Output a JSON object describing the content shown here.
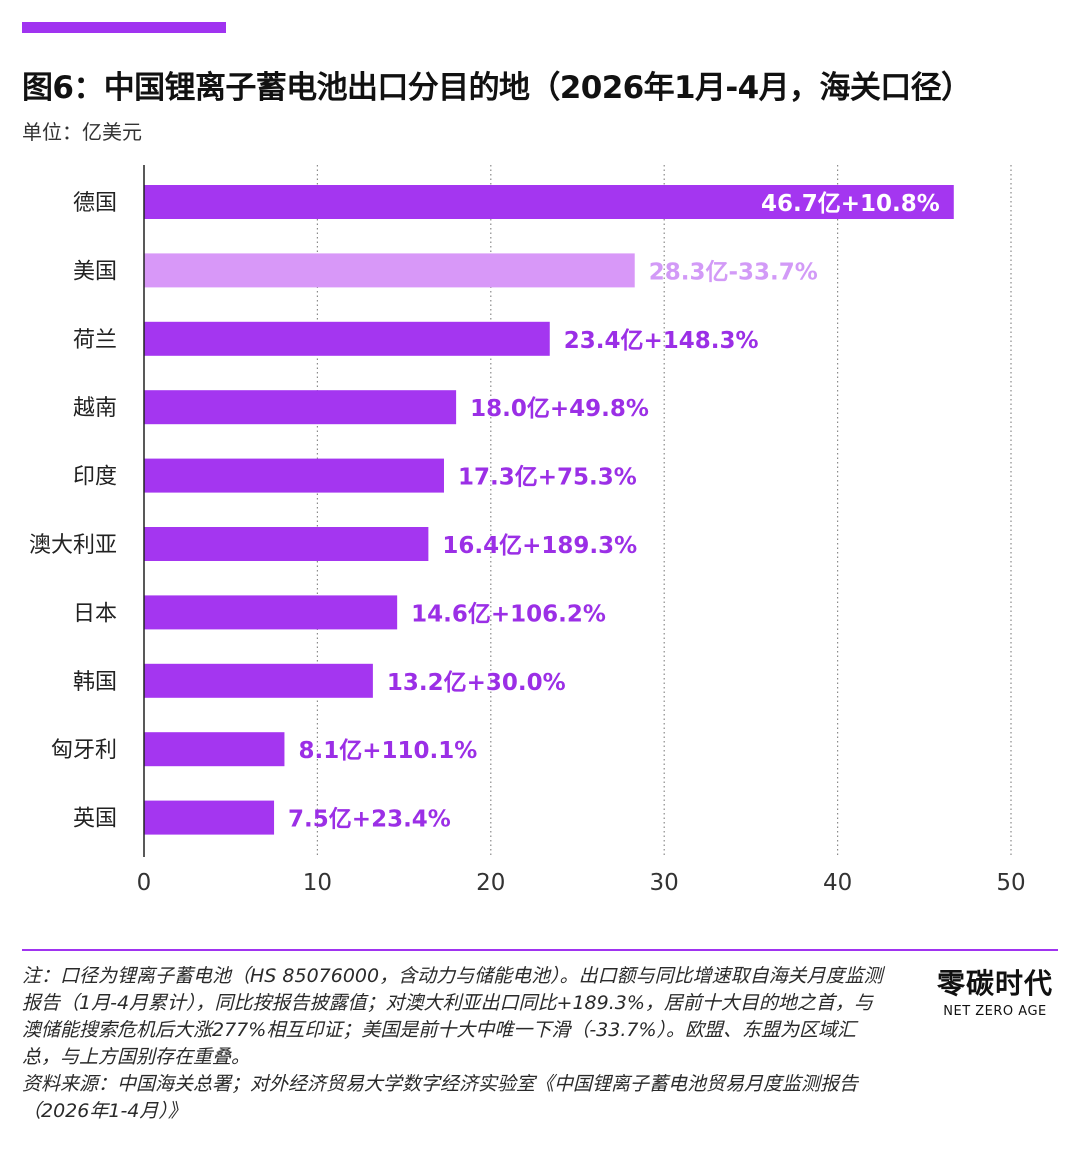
{
  "header": {
    "title": "图6：中国锂离子蓄电池出口分目的地（2026年1月-4月，海关口径）",
    "unit": "单位：亿美元"
  },
  "colors": {
    "accent": "#a033f0",
    "bar": "#a436f0",
    "bar_highlight": "#d898f8",
    "label_dark": "#9b2fe6",
    "label_light": "#d29af7",
    "label_inside": "#ffffff"
  },
  "chart_data": {
    "type": "bar",
    "orientation": "horizontal",
    "categories": [
      "德国",
      "美国",
      "荷兰",
      "越南",
      "印度",
      "澳大利亚",
      "日本",
      "韩国",
      "匈牙利",
      "英国"
    ],
    "values": [
      46.7,
      28.3,
      23.4,
      18.0,
      17.3,
      16.4,
      14.6,
      13.2,
      8.1,
      7.5
    ],
    "data_labels": [
      "46.7亿+10.8%",
      "28.3亿-33.7%",
      "23.4亿+148.3%",
      "18.0亿+49.8%",
      "17.3亿+75.3%",
      "16.4亿+189.3%",
      "14.6亿+106.2%",
      "13.2亿+30.0%",
      "8.1亿+110.1%",
      "7.5亿+23.4%"
    ],
    "highlight_categories": [
      "美国"
    ],
    "xlim": [
      0,
      50
    ],
    "xticks": [
      0,
      10,
      20,
      30,
      40,
      50
    ],
    "grid": "vertical dotted"
  },
  "footer": {
    "note": "注：口径为锂离子蓄电池（HS 85076000，含动力与储能电池）。出口额与同比增速取自海关月度监测报告（1月-4月累计），同比按报告披露值；对澳大利亚出口同比+189.3%，居前十大目的地之首，与澳储能搜索危机后大涨277%相互印证；美国是前十大中唯一下滑（-33.7%）。欧盟、东盟为区域汇总，与上方国别存在重叠。",
    "source": "资料来源：中国海关总署；对外经济贸易大学数字经济实验室《中国锂离子蓄电池贸易月度监测报告（2026年1-4月）》"
  },
  "logo": {
    "cn": "零碳时代",
    "en": "NET ZERO AGE"
  }
}
